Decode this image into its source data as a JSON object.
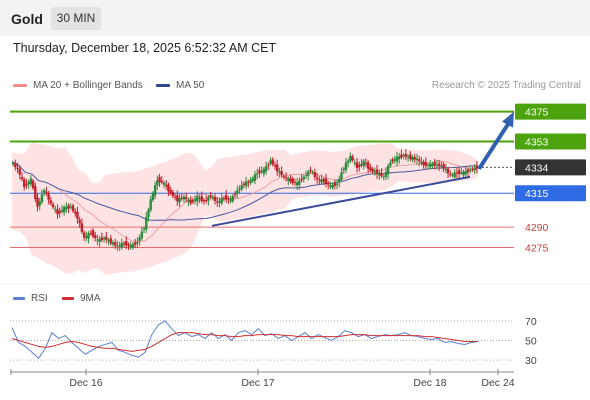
{
  "instrument": "Gold",
  "timeframe": "30 MIN",
  "datetime": "Thursday, December 18, 2025 6:52:32 AM CET",
  "legend": {
    "bollinger": "MA 20 + Bollinger Bands",
    "ma50": "MA 50",
    "rsi": "RSI",
    "rsi_ma": "9MA"
  },
  "credit": "Research © 2025 Trading Central",
  "colors": {
    "resistance": "#4ca30d",
    "pivot": "#2f6be4",
    "support": "#e86a6a",
    "current": "#333333",
    "candle_up": "#2a8b3e",
    "candle_down": "#c2202a",
    "ma20": "#f0a0a0",
    "ma50": "#4a5a9e",
    "band_fill": "#fde3e3",
    "trendline": "#3a4b9a",
    "forecast_arrow": "#2f5fb0",
    "rsi_line": "#5b7fd4",
    "rsi_ma_line": "#d03030"
  },
  "chart_data": {
    "type": "candlestick",
    "price_levels": [
      {
        "label": "4375",
        "value": 4375,
        "kind": "resistance"
      },
      {
        "label": "4353",
        "value": 4353,
        "kind": "resistance"
      },
      {
        "label": "4334",
        "value": 4334,
        "kind": "current"
      },
      {
        "label": "4315",
        "value": 4315,
        "kind": "pivot"
      },
      {
        "label": "4290",
        "value": 4290,
        "kind": "support"
      },
      {
        "label": "4275",
        "value": 4275,
        "kind": "support"
      }
    ],
    "ylim": [
      4257,
      4388
    ],
    "x_ticks": [
      "Dec 16",
      "Dec 17",
      "Dec 18",
      "Dec 24"
    ],
    "candle_path": [
      4338,
      4333,
      4320,
      4325,
      4305,
      4318,
      4307,
      4300,
      4304,
      4305,
      4297,
      4282,
      4286,
      4280,
      4282,
      4279,
      4276,
      4278,
      4276,
      4279,
      4290,
      4310,
      4325,
      4322,
      4315,
      4310,
      4312,
      4308,
      4312,
      4309,
      4313,
      4308,
      4312,
      4310,
      4317,
      4322,
      4324,
      4330,
      4332,
      4339,
      4332,
      4327,
      4324,
      4322,
      4327,
      4332,
      4325,
      4324,
      4320,
      4322,
      4334,
      4342,
      4334,
      4338,
      4332,
      4330,
      4327,
      4338,
      4341,
      4343,
      4341,
      4340,
      4336,
      4336,
      4336,
      4334,
      4328,
      4330,
      4330,
      4332,
      4334
    ],
    "trendline": {
      "from": {
        "x_fraction": 0.0,
        "value": 4291
      },
      "to": {
        "x_fraction": 1.0,
        "value": 4327
      }
    },
    "forecast_target": 4375,
    "rsi": {
      "yticks": [
        70,
        50,
        30
      ],
      "ylim": [
        20,
        80
      ],
      "values": [
        63,
        48,
        44,
        38,
        32,
        42,
        58,
        52,
        55,
        48,
        42,
        36,
        40,
        44,
        46,
        48,
        40,
        38,
        35,
        33,
        38,
        56,
        66,
        70,
        62,
        55,
        58,
        54,
        56,
        52,
        58,
        52,
        56,
        50,
        58,
        60,
        56,
        62,
        55,
        57,
        52,
        55,
        50,
        54,
        58,
        52,
        56,
        53,
        50,
        54,
        60,
        58,
        54,
        56,
        52,
        54,
        56,
        55,
        56,
        58,
        55,
        54,
        52,
        51,
        52,
        48,
        49,
        47,
        46,
        48,
        49
      ],
      "ma9": [
        52,
        50,
        48,
        46,
        44,
        43,
        44,
        46,
        48,
        49,
        48,
        46,
        44,
        43,
        42,
        42,
        41,
        40,
        39,
        40,
        41,
        44,
        48,
        52,
        56,
        58,
        58,
        58,
        57,
        56,
        56,
        55,
        55,
        54,
        54,
        55,
        55,
        56,
        56,
        56,
        56,
        55,
        55,
        54,
        54,
        54,
        54,
        54,
        54,
        54,
        55,
        56,
        56,
        56,
        55,
        55,
        55,
        55,
        55,
        55,
        55,
        55,
        54,
        54,
        53,
        52,
        51,
        50,
        49,
        49,
        49
      ]
    }
  }
}
